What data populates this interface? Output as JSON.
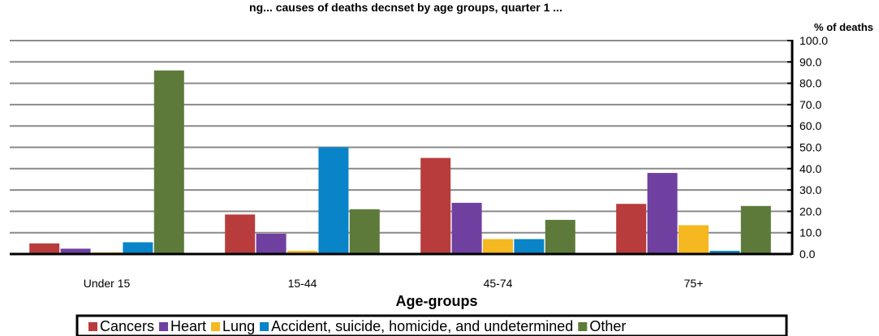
{
  "chart_data": {
    "type": "bar",
    "title": "ng... causes of deaths decnset by age groups, quarter 1 ...",
    "xlabel": "Age-groups",
    "ylabel": "% of deaths",
    "ylim": [
      0,
      100
    ],
    "yticks": [
      "0.0",
      "10.0",
      "20.0",
      "30.0",
      "40.0",
      "50.0",
      "60.0",
      "70.0",
      "80.0",
      "90.0",
      "100.0"
    ],
    "y_axis_side": "right",
    "grid": true,
    "legend_position": "bottom",
    "categories": [
      "Under 15",
      "15-44",
      "45-74",
      "75+"
    ],
    "series": [
      {
        "name": "Cancers",
        "color": "#B83C3C",
        "values": [
          5.0,
          18.5,
          45.0,
          23.5
        ]
      },
      {
        "name": "Heart",
        "color": "#7040A0",
        "values": [
          2.5,
          9.5,
          24.0,
          38.0
        ]
      },
      {
        "name": "Lung",
        "color": "#F5B820",
        "values": [
          0.8,
          1.5,
          7.0,
          13.5
        ]
      },
      {
        "name": "Accident, suicide, homicide, and undetermined",
        "color": "#0A84C8",
        "values": [
          5.5,
          50.0,
          7.0,
          1.5
        ]
      },
      {
        "name": "Other",
        "color": "#5E7A3A",
        "values": [
          86.0,
          21.0,
          16.0,
          22.5
        ]
      }
    ]
  }
}
